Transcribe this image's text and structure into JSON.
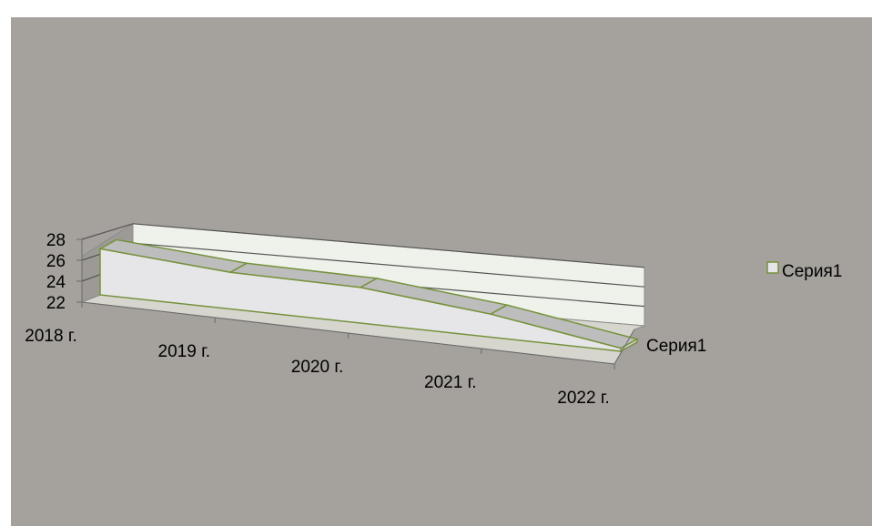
{
  "chart_data": {
    "type": "area",
    "subtype": "3d-area",
    "categories": [
      "2018 г.",
      "2019 г.",
      "2020 г.",
      "2021 г.",
      "2022 г."
    ],
    "series": [
      {
        "name": "Серия1",
        "values": [
          26.4,
          25.5,
          25.4,
          24.2,
          22.3
        ]
      }
    ],
    "ylim": [
      22,
      28
    ],
    "yticks": [
      22,
      24,
      26,
      28
    ],
    "depth_axis_label": "Серия1",
    "legend": {
      "position": "right",
      "entries": [
        "Серия1"
      ]
    },
    "grid": true,
    "colors": {
      "chart_background": "#a5a19d",
      "wall": "#eef2ea",
      "side_wall": "#9d9a96",
      "floor": "#d6d6cf",
      "front_face": "#e6e6e8",
      "top_face": "#bdbdbd",
      "edge": "#76923c",
      "gridline": "#555555"
    }
  }
}
